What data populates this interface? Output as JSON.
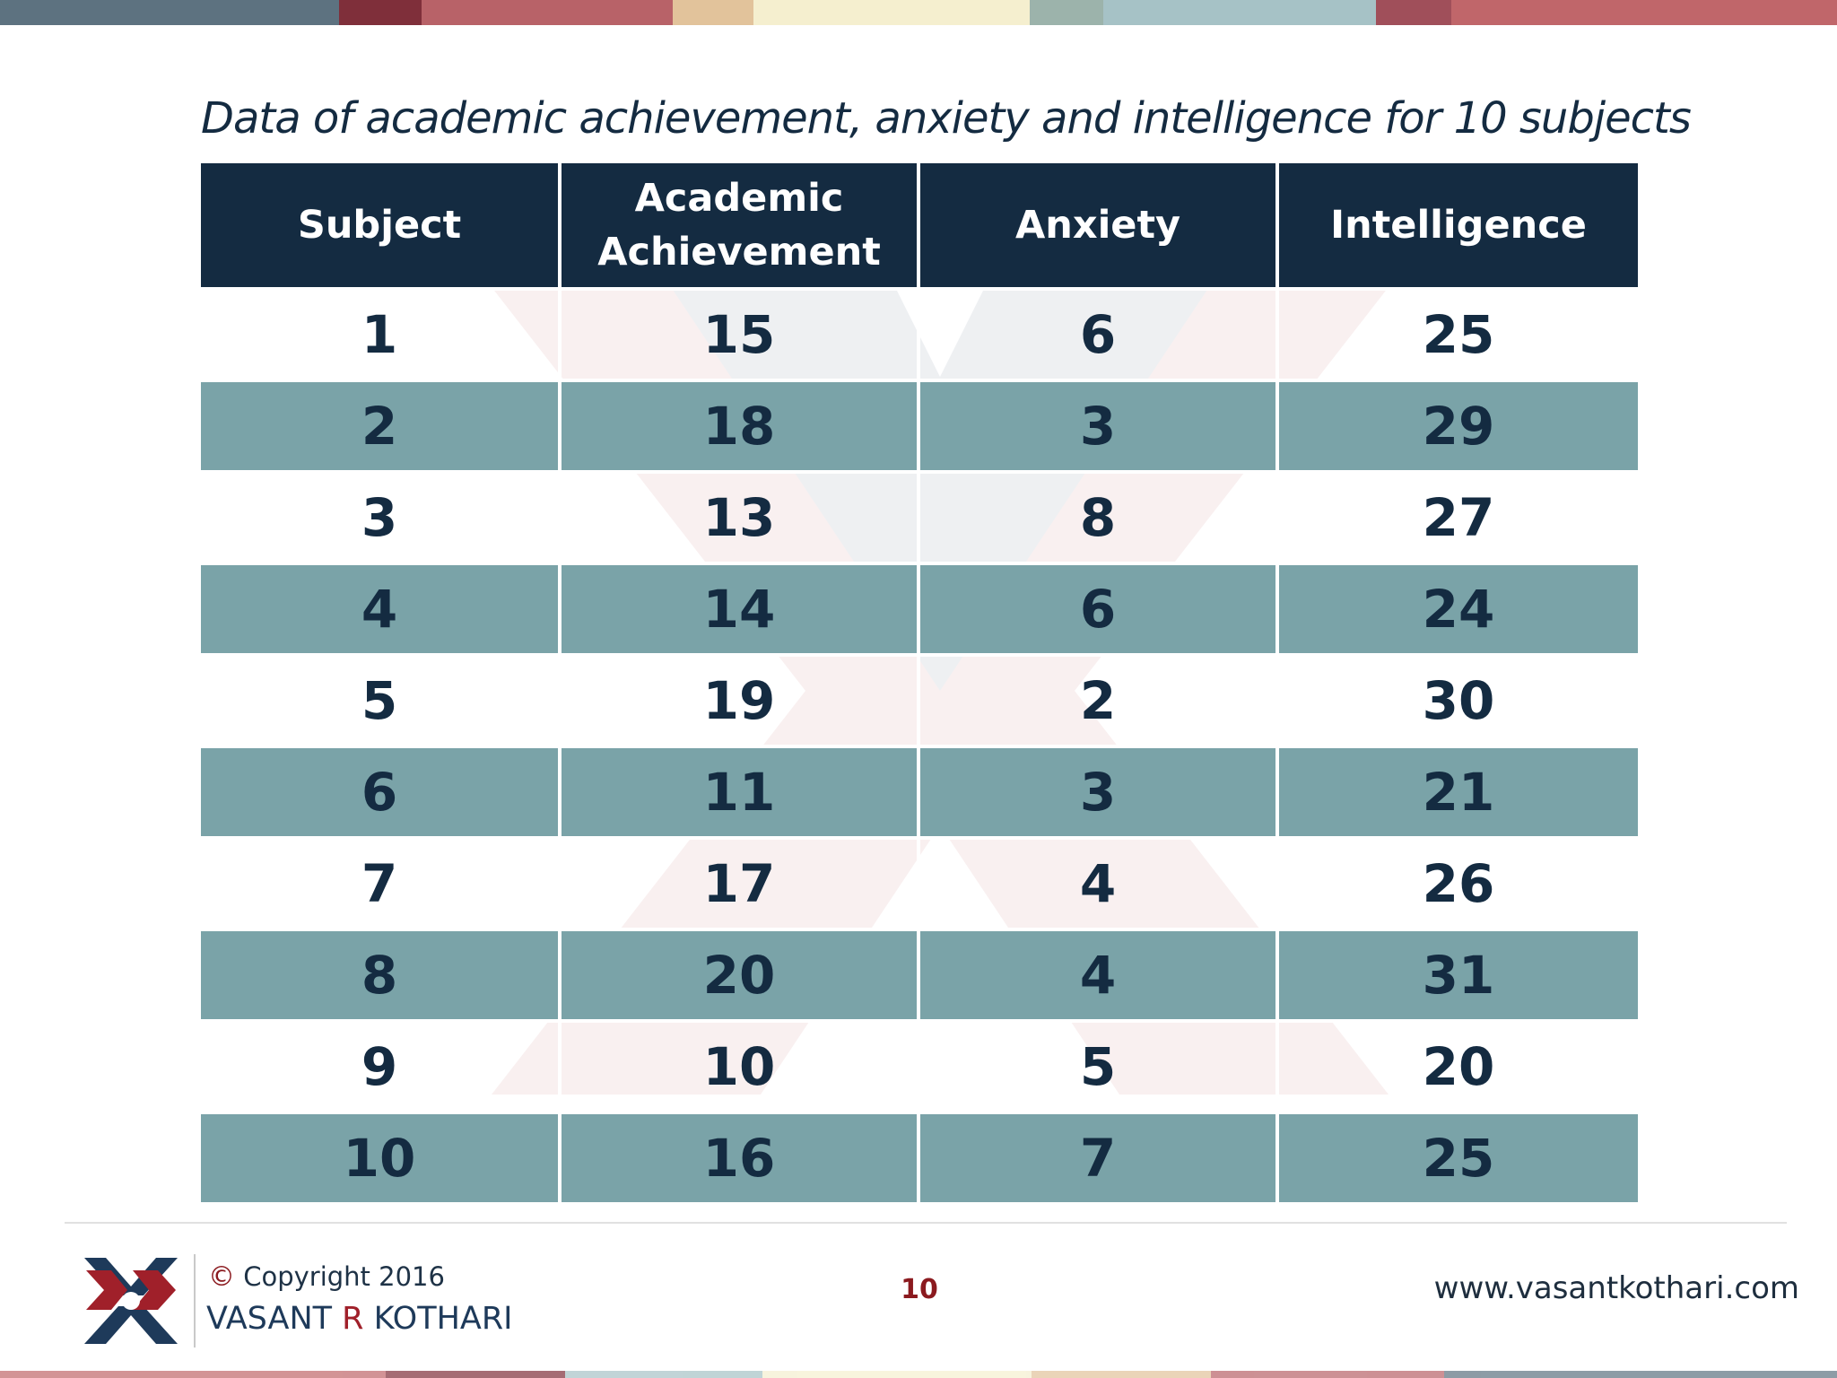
{
  "title": "Data of academic achievement, anxiety and intelligence for 10 subjects",
  "table": {
    "headers": [
      "Subject",
      "Academic Achievement",
      "Anxiety",
      "Intelligence"
    ],
    "rows": [
      [
        "1",
        "15",
        "6",
        "25"
      ],
      [
        "2",
        "18",
        "3",
        "29"
      ],
      [
        "3",
        "13",
        "8",
        "27"
      ],
      [
        "4",
        "14",
        "6",
        "24"
      ],
      [
        "5",
        "19",
        "2",
        "30"
      ],
      [
        "6",
        "11",
        "3",
        "21"
      ],
      [
        "7",
        "17",
        "4",
        "26"
      ],
      [
        "8",
        "20",
        "4",
        "31"
      ],
      [
        "9",
        "10",
        "5",
        "20"
      ],
      [
        "10",
        "16",
        "7",
        "25"
      ]
    ]
  },
  "footer": {
    "copyright_symbol": "©",
    "copyright": "Copyright 2016",
    "author_first": "VASANT",
    "author_middle": "R",
    "author_last": "KOTHARI",
    "page_number": "10",
    "website": "www.vasantkothari.com"
  },
  "colors": {
    "header_bg": "#142b41",
    "row_alt_bg": "#7aa3a8",
    "text_dark": "#142b41",
    "accent_red": "#8b1a1f"
  }
}
